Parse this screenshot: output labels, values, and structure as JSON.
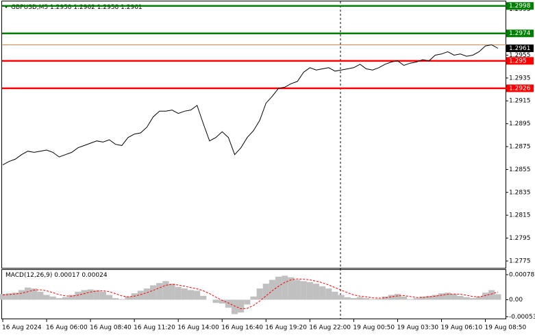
{
  "chart_data": [
    {
      "type": "line",
      "title": "GBPUSD,M5",
      "ohlc": [
        1.2958,
        1.2962,
        1.2958,
        1.2961
      ],
      "color": "#000000",
      "categories": [
        "16 Aug 2024",
        null,
        null,
        null,
        null,
        null,
        null,
        "16 Aug 06:00",
        null,
        null,
        null,
        null,
        null,
        null,
        "16 Aug 08:40",
        null,
        null,
        null,
        null,
        null,
        null,
        "16 Aug 11:20",
        null,
        null,
        null,
        null,
        null,
        null,
        "16 Aug 14:00",
        null,
        null,
        null,
        null,
        null,
        null,
        "16 Aug 16:40",
        null,
        null,
        null,
        null,
        null,
        null,
        "16 Aug 19:20",
        null,
        null,
        null,
        null,
        null,
        null,
        "16 Aug 22:00",
        null,
        null,
        null,
        null,
        null,
        null,
        "19 Aug 00:50",
        null,
        null,
        null,
        null,
        null,
        null,
        "19 Aug 03:30",
        null,
        null,
        null,
        null,
        null,
        null,
        "19 Aug 06:10",
        null,
        null,
        null,
        null,
        null,
        null,
        "19 Aug 08:50",
        null,
        null
      ],
      "values": [
        1.2859,
        1.2862,
        1.2864,
        1.2868,
        1.2871,
        1.287,
        1.2871,
        1.2872,
        1.287,
        1.2866,
        1.2868,
        1.287,
        1.2874,
        1.2876,
        1.2878,
        1.288,
        1.2879,
        1.2881,
        1.2877,
        1.2876,
        1.2883,
        1.2886,
        1.2887,
        1.2892,
        1.2901,
        1.2906,
        1.2906,
        1.2907,
        1.2904,
        1.2906,
        1.2907,
        1.2911,
        1.2895,
        1.288,
        1.2883,
        1.2888,
        1.2883,
        1.2868,
        1.2874,
        1.2883,
        1.2889,
        1.2898,
        1.2913,
        1.2919,
        1.2926,
        1.2927,
        1.293,
        1.2932,
        1.294,
        1.2944,
        1.2942,
        1.2943,
        1.2944,
        1.2941,
        1.2942,
        1.2943,
        1.2944,
        1.2947,
        1.2943,
        1.2942,
        1.2944,
        1.2947,
        1.2949,
        1.295,
        1.2946,
        1.2948,
        1.2949,
        1.2951,
        1.295,
        1.2955,
        1.2956,
        1.2958,
        1.2955,
        1.2956,
        1.2954,
        1.2955,
        1.2958,
        1.2963,
        1.2964,
        1.2961
      ],
      "ylim": [
        1.2769,
        1.3002
      ],
      "yticks": [
        1.2775,
        1.2795,
        1.2815,
        1.2835,
        1.2855,
        1.2875,
        1.2895,
        1.2915,
        1.2935,
        1.2955,
        1.2995
      ],
      "levels": [
        {
          "value": 1.2998,
          "color": "#008000"
        },
        {
          "value": 1.2974,
          "color": "#008000"
        },
        {
          "value": 1.295,
          "color": "#ff0000"
        },
        {
          "value": 1.2926,
          "color": "#ff0000"
        }
      ],
      "ask": {
        "value": 1.2964,
        "color": "#f08040"
      }
    },
    {
      "type": "macd",
      "title": "MACD(12,26,9)",
      "series": [
        {
          "name": "MACD",
          "color": "#c0c0c0",
          "values": [
            0.00018,
            0.0002,
            0.00022,
            0.0003,
            0.00038,
            0.00035,
            0.00025,
            0.00015,
            0.0001,
            5e-05,
            8e-05,
            0.00015,
            0.00025,
            0.0003,
            0.00032,
            0.0003,
            0.00025,
            0.00015,
            5e-05,
            2e-05,
            0.0001,
            0.0002,
            0.00028,
            0.00035,
            0.00045,
            0.00052,
            0.00058,
            0.0005,
            0.0004,
            0.00035,
            0.0003,
            0.00028,
            0.00012,
            0.0,
            -0.0001,
            -0.00012,
            -0.00025,
            -0.00045,
            -0.0004,
            -0.00015,
            0.0001,
            0.00035,
            0.0005,
            0.00062,
            0.00072,
            0.00075,
            0.0007,
            0.00062,
            0.00058,
            0.00055,
            0.0005,
            0.00042,
            0.00035,
            0.00025,
            0.00015,
            8e-05,
            5e-05,
            8e-05,
            5e-05,
            2e-05,
            3e-05,
            0.0001,
            0.00015,
            0.00018,
            0.0001,
            2e-05,
            5e-05,
            0.0001,
            0.00012,
            0.00015,
            0.0002,
            0.00022,
            0.00018,
            0.00012,
            8e-05,
            5e-05,
            0.0001,
            0.00022,
            0.0003,
            0.00017
          ]
        },
        {
          "name": "Signal",
          "color": "#ff0000",
          "values": [
            0.00015,
            0.00016,
            0.00018,
            0.0002,
            0.00025,
            0.0003,
            0.00031,
            0.00028,
            0.00022,
            0.00016,
            0.00012,
            0.00011,
            0.00014,
            0.00019,
            0.00024,
            0.00027,
            0.00028,
            0.00025,
            0.00019,
            0.00012,
            9e-05,
            0.00011,
            0.00016,
            0.00022,
            0.00029,
            0.00037,
            0.00045,
            0.00048,
            0.00046,
            0.00042,
            0.00038,
            0.00034,
            0.00028,
            0.00019,
            8e-05,
            -2e-05,
            -0.0001,
            -0.0002,
            -0.00028,
            -0.00027,
            -0.00018,
            -4e-05,
            0.00012,
            0.00028,
            0.00042,
            0.00054,
            0.00062,
            0.00065,
            0.00064,
            0.00062,
            0.00058,
            0.00053,
            0.00046,
            0.00038,
            0.0003,
            0.00022,
            0.00015,
            0.00011,
            9e-05,
            6e-05,
            5e-05,
            6e-05,
            9e-05,
            0.00012,
            0.00013,
            0.0001,
            7e-05,
            7e-05,
            9e-05,
            0.00011,
            0.00014,
            0.00017,
            0.00018,
            0.00017,
            0.00014,
            0.0001,
            9e-05,
            0.00013,
            0.00018,
            0.00024
          ]
        }
      ],
      "ylim": [
        -0.00061,
        0.00093
      ],
      "yticks": [
        -0.00053,
        {
          "value": 0,
          "label": "0.00"
        },
        0.00078
      ]
    }
  ]
}
